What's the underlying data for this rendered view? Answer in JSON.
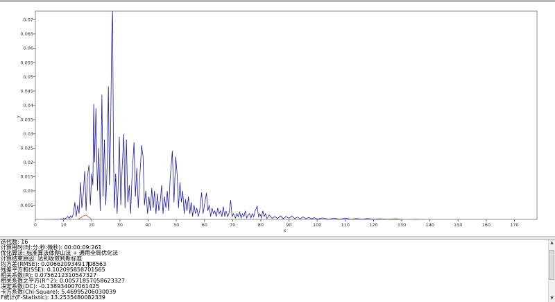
{
  "chart_data": {
    "type": "line",
    "xlabel": "x",
    "ylabel": "y",
    "xlim": [
      0,
      178
    ],
    "ylim": [
      0,
      0.073
    ],
    "x_ticks": [
      "0",
      "10",
      "20",
      "30",
      "40",
      "50",
      "60",
      "70",
      "80",
      "90",
      "100",
      "110",
      "120",
      "130",
      "140",
      "150",
      "160",
      "170"
    ],
    "y_ticks": [
      "0.005",
      "0.01",
      "0.015",
      "0.02",
      "0.025",
      "0.03",
      "0.035",
      "0.04",
      "0.045",
      "0.05",
      "0.055",
      "0.06",
      "0.065",
      "0.07"
    ],
    "grid": false,
    "series": [
      {
        "color": "#1a1aa8",
        "points": [
          [
            0,
            0
          ],
          [
            8,
            0.0001
          ],
          [
            8.5,
            0
          ],
          [
            9,
            0.0002
          ],
          [
            9.5,
            0.0001
          ],
          [
            10,
            0.0003
          ],
          [
            10.5,
            0.0002
          ],
          [
            11,
            0.0005
          ],
          [
            11.5,
            0.001
          ],
          [
            12,
            0.0004
          ],
          [
            12.5,
            0.0012
          ],
          [
            13,
            0.0006
          ],
          [
            13.5,
            0.002
          ],
          [
            14,
            0.006
          ],
          [
            14.5,
            0.001
          ],
          [
            15,
            0.005
          ],
          [
            15.5,
            0.002
          ],
          [
            16,
            0.013
          ],
          [
            16.5,
            0.004
          ],
          [
            17,
            0.009
          ],
          [
            17.5,
            0.017
          ],
          [
            18,
            0.003
          ],
          [
            18.5,
            0.015
          ],
          [
            19,
            0.019
          ],
          [
            19.5,
            0.005
          ],
          [
            20,
            0.016
          ],
          [
            20.4,
            0.012
          ],
          [
            20.7,
            0.0405
          ],
          [
            21,
            0.02
          ],
          [
            21.5,
            0.039
          ],
          [
            22,
            0.01
          ],
          [
            22.5,
            0.025
          ],
          [
            23,
            0.003
          ],
          [
            23.6,
            0.0437
          ],
          [
            24,
            0.008
          ],
          [
            24.5,
            0.028
          ],
          [
            25,
            0.005
          ],
          [
            25.5,
            0.02
          ],
          [
            25.9,
            0.0466
          ],
          [
            26.3,
            0.012
          ],
          [
            26.7,
            0.03
          ],
          [
            27.1,
            0.065
          ],
          [
            27.4,
            0.073
          ],
          [
            27.7,
            0.025
          ],
          [
            28,
            0.004
          ],
          [
            28.5,
            0.016
          ],
          [
            29,
            0.002
          ],
          [
            29.4,
            0.012
          ],
          [
            29.8,
            0.029
          ],
          [
            30.3,
            0.005
          ],
          [
            30.8,
            0.018
          ],
          [
            31.4,
            0.03
          ],
          [
            31.8,
            0.004
          ],
          [
            32.3,
            0.028
          ],
          [
            32.8,
            0.006
          ],
          [
            33.3,
            0.012
          ],
          [
            33.8,
            0.002
          ],
          [
            34.3,
            0.015
          ],
          [
            35,
            0.027
          ],
          [
            35.5,
            0.008
          ],
          [
            36,
            0.018
          ],
          [
            36.5,
            0.004
          ],
          [
            37,
            0.014
          ],
          [
            37.7,
            0.026
          ],
          [
            38.2,
            0.022
          ],
          [
            38.7,
            0.005
          ],
          [
            39.2,
            0.01
          ],
          [
            39.8,
            0.002
          ],
          [
            40.3,
            0.008
          ],
          [
            40.8,
            0.003
          ],
          [
            41.3,
            0.011
          ],
          [
            41.8,
            0.004
          ],
          [
            42.3,
            0.01
          ],
          [
            42.8,
            0.002
          ],
          [
            43.3,
            0.009
          ],
          [
            43.8,
            0.003
          ],
          [
            44.3,
            0.006
          ],
          [
            44.8,
            0.012
          ],
          [
            45.3,
            0.002
          ],
          [
            45.8,
            0.008
          ],
          [
            46.3,
            0.004
          ],
          [
            46.8,
            0.01
          ],
          [
            47.3,
            0.003
          ],
          [
            47.8,
            0.014
          ],
          [
            48.6,
            0.024
          ],
          [
            49.2,
            0.006
          ],
          [
            49.8,
            0.022
          ],
          [
            50.3,
            0.016
          ],
          [
            50.8,
            0.004
          ],
          [
            51.3,
            0.013
          ],
          [
            51.8,
            0.006
          ],
          [
            52.3,
            0.01
          ],
          [
            52.8,
            0.002
          ],
          [
            53.3,
            0.007
          ],
          [
            53.8,
            0.003
          ],
          [
            54.3,
            0.008
          ],
          [
            54.8,
            0.002
          ],
          [
            55.3,
            0.006
          ],
          [
            55.8,
            0.001
          ],
          [
            56.3,
            0.005
          ],
          [
            56.8,
            0.002
          ],
          [
            57.3,
            0.004
          ],
          [
            57.8,
            0.001
          ],
          [
            58.3,
            0.003
          ],
          [
            59,
            0.0095
          ],
          [
            59.5,
            0.002
          ],
          [
            60,
            0.005
          ],
          [
            60.7,
            0.0093
          ],
          [
            61.2,
            0.003
          ],
          [
            61.7,
            0.005
          ],
          [
            62.2,
            0.001
          ],
          [
            62.7,
            0.004
          ],
          [
            63.2,
            0.002
          ],
          [
            63.7,
            0.003
          ],
          [
            64.2,
            0.001
          ],
          [
            64.7,
            0.004
          ],
          [
            65.2,
            0.002
          ],
          [
            65.7,
            0.003
          ],
          [
            66.2,
            0.001
          ],
          [
            66.7,
            0.0045
          ],
          [
            67.2,
            0.001
          ],
          [
            67.7,
            0.003
          ],
          [
            68.2,
            0.001
          ],
          [
            68.7,
            0.002
          ],
          [
            69.3,
            0.0068
          ],
          [
            69.8,
            0.001
          ],
          [
            70.3,
            0.002
          ],
          [
            71,
            0.0005
          ],
          [
            71.5,
            0.002
          ],
          [
            72,
            0.001
          ],
          [
            72.5,
            0.0025
          ],
          [
            73,
            0.0005
          ],
          [
            73.5,
            0.002
          ],
          [
            74,
            0.001
          ],
          [
            74.5,
            0.003
          ],
          [
            75,
            0.0005
          ],
          [
            75.5,
            0.0015
          ],
          [
            76,
            0.002
          ],
          [
            76.5,
            0.0005
          ],
          [
            77,
            0.002
          ],
          [
            77.5,
            0.001
          ],
          [
            78,
            0.003
          ],
          [
            78.7,
            0.0046
          ],
          [
            79.2,
            0.001
          ],
          [
            79.7,
            0.002
          ],
          [
            80.2,
            0.0005
          ],
          [
            80.7,
            0.003
          ],
          [
            81.2,
            0.001
          ],
          [
            81.7,
            0.002
          ],
          [
            82.2,
            0.0003
          ],
          [
            83,
            0.0015
          ],
          [
            84,
            0.0004
          ],
          [
            85,
            0.001
          ],
          [
            86,
            0.0003
          ],
          [
            87,
            0.0012
          ],
          [
            88,
            0.0003
          ],
          [
            89,
            0.001
          ],
          [
            90,
            0.0004
          ],
          [
            91,
            0.0012
          ],
          [
            92,
            0.0003
          ],
          [
            93,
            0.0008
          ],
          [
            94,
            0.0002
          ],
          [
            95,
            0.0009
          ],
          [
            96,
            0.0002
          ],
          [
            97,
            0.0007
          ],
          [
            98,
            0.0002
          ],
          [
            99,
            0.0006
          ],
          [
            100,
            0.0001
          ],
          [
            102,
            0.0005
          ],
          [
            104,
            0.0001
          ],
          [
            106,
            0.0004
          ],
          [
            108,
            0.0001
          ],
          [
            110,
            0.0004
          ],
          [
            112,
            0.0001
          ],
          [
            114,
            0.0003
          ],
          [
            116,
            0.0001
          ],
          [
            118,
            0.0003
          ],
          [
            120,
            0.0001
          ],
          [
            122,
            0.0002
          ],
          [
            125,
            0.0001
          ],
          [
            128,
            0.0002
          ],
          [
            131,
            0
          ],
          [
            135,
            0.0001
          ],
          [
            140,
            0
          ],
          [
            178,
            0
          ]
        ]
      },
      {
        "color": "#d04020",
        "points": [
          [
            15,
            0
          ],
          [
            16,
            0.0005
          ],
          [
            17,
            0.0012
          ],
          [
            18,
            0.0015
          ],
          [
            19,
            0.0008
          ],
          [
            20,
            0
          ]
        ]
      }
    ]
  },
  "log": {
    "lines": [
      "迭代数: 16",
      "计算用时(时:分:秒:微秒): 00:00:09:261",
      "优化算法: 标准算法体爬山法 + 通用全局优化法",
      "计算结束原因: 达到收敛判断标准",
      "均方差(RMSE): 0.00662093491708563",
      "残差平方和(SSE): 0.102095858701565",
      "相关系数(R): 0.0756212310547327",
      "相关系数之平方(R^2): 0.00571857058623327",
      "决定系数(DC): -0.138934007061425",
      "卡方系数(Chi-Square): 5.46995206030039",
      "F统计(F-Statistic): 13.2535480082339"
    ]
  },
  "scrollbar": {
    "up_icon": "▲",
    "down_icon": "▼"
  }
}
